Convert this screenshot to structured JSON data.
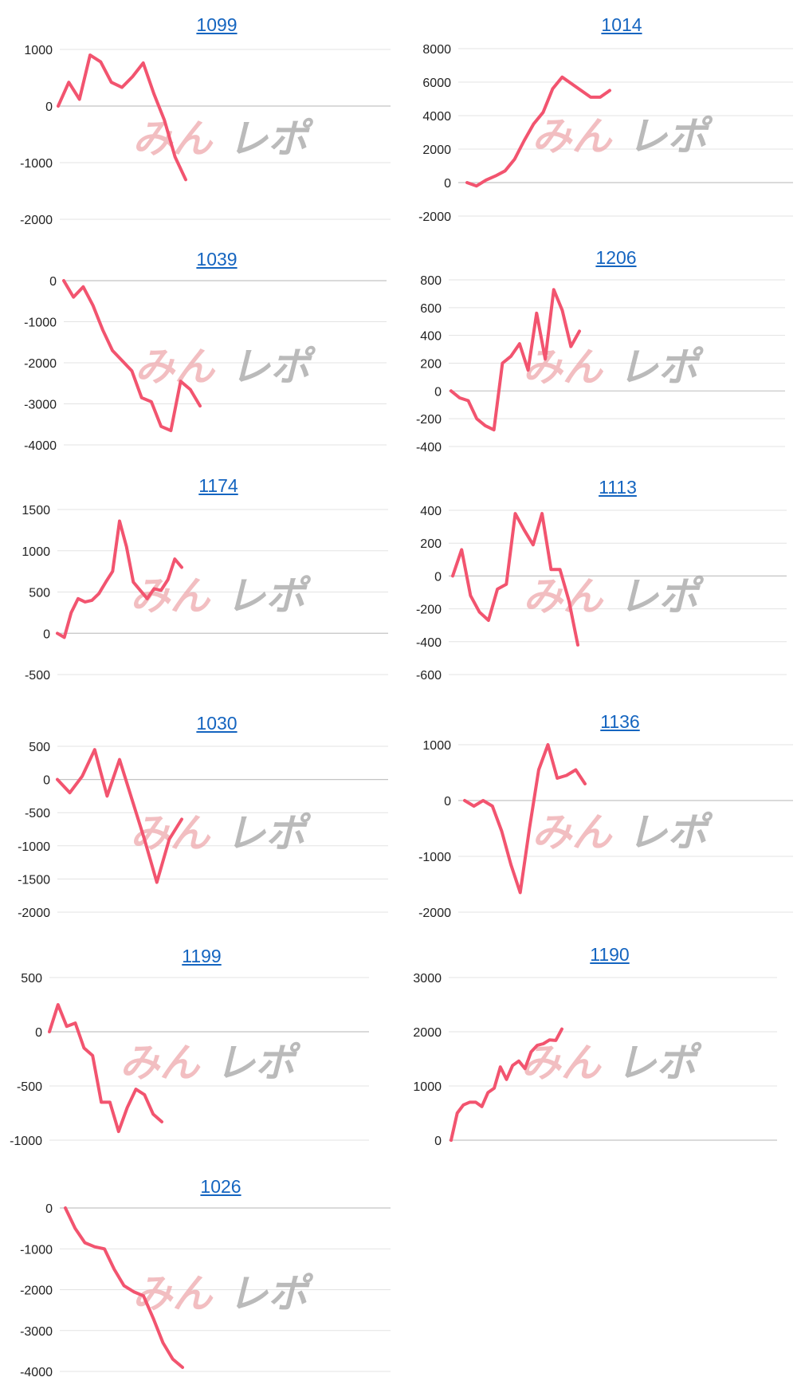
{
  "colors": {
    "series": "#f2546f",
    "title_link": "#1565c0",
    "gridline": "#e3e3e3",
    "zero_line": "#c4c4c4",
    "watermark_pink": "#eea8ac",
    "watermark_gray": "#a9a9a9"
  },
  "watermark": {
    "text": "みんレポ"
  },
  "chart_data": [
    {
      "type": "line",
      "title": "1099",
      "yticks": [
        1000,
        0,
        -1000,
        -2000
      ],
      "ylim": [
        -2000,
        1000
      ],
      "grid": true,
      "series": [
        {
          "values": [
            0,
            420,
            120,
            900,
            780,
            420,
            330,
            520,
            760,
            220,
            -250,
            -900,
            -1300
          ]
        }
      ]
    },
    {
      "type": "line",
      "title": "1014",
      "yticks": [
        8000,
        6000,
        4000,
        2000,
        0,
        -2000
      ],
      "ylim": [
        -2000,
        8000
      ],
      "grid": true,
      "series": [
        {
          "values": [
            0,
            -200,
            150,
            400,
            700,
            1400,
            2500,
            3500,
            4200,
            5600,
            6300,
            5900,
            5500,
            5100,
            5100,
            5500
          ]
        }
      ]
    },
    {
      "type": "line",
      "title": "1039",
      "yticks": [
        0,
        -1000,
        -2000,
        -3000,
        -4000
      ],
      "ylim": [
        -4000,
        0
      ],
      "grid": true,
      "series": [
        {
          "values": [
            0,
            -400,
            -150,
            -600,
            -1200,
            -1700,
            -1950,
            -2200,
            -2850,
            -2950,
            -3550,
            -3650,
            -2450,
            -2650,
            -3050
          ]
        }
      ]
    },
    {
      "type": "line",
      "title": "1206",
      "yticks": [
        800,
        600,
        400,
        200,
        0,
        -200,
        -400
      ],
      "ylim": [
        -400,
        800
      ],
      "grid": true,
      "series": [
        {
          "values": [
            0,
            -50,
            -70,
            -200,
            -250,
            -280,
            200,
            250,
            340,
            150,
            560,
            230,
            730,
            580,
            320,
            430
          ]
        }
      ]
    },
    {
      "type": "line",
      "title": "1174",
      "yticks": [
        1500,
        1000,
        500,
        0,
        -500
      ],
      "ylim": [
        -500,
        1500
      ],
      "grid": true,
      "series": [
        {
          "values": [
            0,
            -50,
            250,
            420,
            380,
            400,
            480,
            620,
            750,
            1360,
            1050,
            620,
            520,
            420,
            540,
            520,
            650,
            900,
            800
          ]
        }
      ]
    },
    {
      "type": "line",
      "title": "1113",
      "yticks": [
        400,
        200,
        0,
        -200,
        -400,
        -600
      ],
      "ylim": [
        -600,
        400
      ],
      "grid": true,
      "series": [
        {
          "values": [
            0,
            160,
            -120,
            -220,
            -270,
            -80,
            -50,
            380,
            280,
            190,
            380,
            40,
            40,
            -150,
            -420
          ]
        }
      ]
    },
    {
      "type": "line",
      "title": "1030",
      "yticks": [
        500,
        0,
        -500,
        -1000,
        -1500,
        -2000
      ],
      "ylim": [
        -2000,
        500
      ],
      "grid": true,
      "series": [
        {
          "values": [
            0,
            -200,
            50,
            450,
            -250,
            300,
            -300,
            -900,
            -1550,
            -900,
            -600
          ]
        }
      ]
    },
    {
      "type": "line",
      "title": "1136",
      "yticks": [
        1000,
        0,
        -1000,
        -2000
      ],
      "ylim": [
        -2000,
        1000
      ],
      "grid": true,
      "series": [
        {
          "values": [
            0,
            -100,
            0,
            -100,
            -550,
            -1150,
            -1650,
            -500,
            550,
            1000,
            400,
            450,
            550,
            300
          ]
        }
      ]
    },
    {
      "type": "line",
      "title": "1199",
      "yticks": [
        500,
        0,
        -500,
        -1000
      ],
      "ylim": [
        -1000,
        500
      ],
      "grid": true,
      "series": [
        {
          "values": [
            0,
            250,
            50,
            80,
            -150,
            -220,
            -650,
            -650,
            -920,
            -700,
            -530,
            -580,
            -760,
            -830
          ]
        }
      ]
    },
    {
      "type": "line",
      "title": "1190",
      "yticks": [
        3000,
        2000,
        1000,
        0
      ],
      "ylim": [
        0,
        3000
      ],
      "grid": true,
      "series": [
        {
          "values": [
            0,
            500,
            650,
            700,
            700,
            620,
            880,
            960,
            1350,
            1120,
            1380,
            1460,
            1320,
            1630,
            1750,
            1780,
            1850,
            1840,
            2050
          ]
        }
      ]
    },
    {
      "type": "line",
      "title": "1026",
      "yticks": [
        0,
        -1000,
        -2000,
        -3000,
        -4000
      ],
      "ylim": [
        -4000,
        0
      ],
      "grid": true,
      "series": [
        {
          "values": [
            0,
            -500,
            -850,
            -950,
            -1000,
            -1500,
            -1900,
            -2050,
            -2150,
            -2700,
            -3300,
            -3700,
            -3900
          ]
        }
      ]
    }
  ]
}
